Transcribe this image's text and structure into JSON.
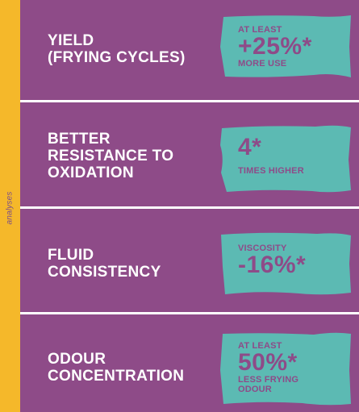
{
  "side_label": "analyses",
  "colors": {
    "background": "#8e4b88",
    "accent_strip": "#f5b82a",
    "badge": "#5cbab3",
    "title_text": "#ffffff",
    "badge_text": "#8e4b88"
  },
  "panels": [
    {
      "title_lines": [
        "YIELD",
        "(FRYING CYCLES)"
      ],
      "badge": {
        "top": "AT LEAST",
        "value": "+25%*",
        "bottom": [
          "MORE USE"
        ]
      }
    },
    {
      "title_lines": [
        "BETTER",
        "RESISTANCE TO",
        "OXIDATION"
      ],
      "badge": {
        "top": "",
        "value": "4*",
        "bottom": [
          "TIMES HIGHER"
        ]
      }
    },
    {
      "title_lines": [
        "FLUID",
        "CONSISTENCY"
      ],
      "badge": {
        "top": "VISCOSITY",
        "value": "-16%*",
        "bottom": []
      }
    },
    {
      "title_lines": [
        "ODOUR",
        "CONCENTRATION"
      ],
      "badge": {
        "top": "AT LEAST",
        "value": "50%*",
        "bottom": [
          "LESS FRYING",
          "ODOUR"
        ]
      }
    }
  ]
}
